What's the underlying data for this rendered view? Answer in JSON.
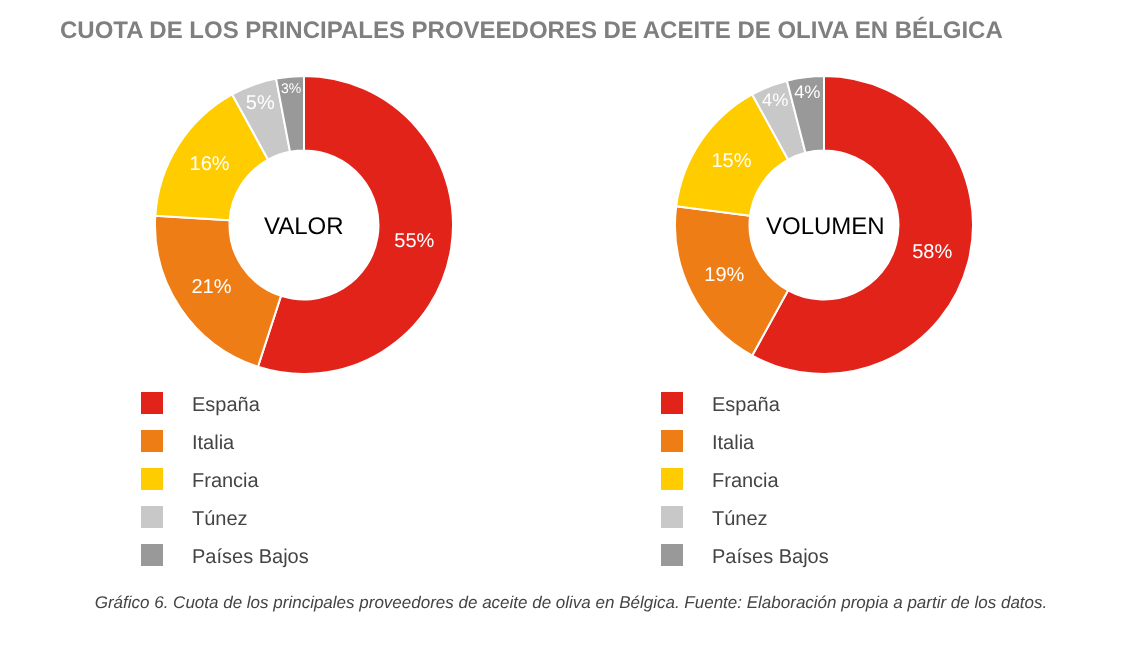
{
  "chart_data": [
    {
      "type": "donut",
      "title": "CUOTA DE LOS PRINCIPALES PROVEEDORES DE ACEITE DE OLIVA EN BÉLGICA",
      "categories": [
        "España",
        "Italia",
        "Francia",
        "Túnez",
        "Países Bajos"
      ],
      "values": [
        55,
        21,
        16,
        5,
        3
      ],
      "value_labels": [
        "55%",
        "21%",
        "16%",
        "5%",
        "3%"
      ],
      "colors": [
        "#e2231a",
        "#ef7d15",
        "#ffcc00",
        "#c8c8c8",
        "#999999"
      ],
      "legend": "bottom",
      "annotations": [
        "VALOR",
        "Gráfico 6. Cuota de los principales proveedores de aceite de oliva en Bélgica. Fuente: Elaboración propia a partir de los datos."
      ]
    },
    {
      "type": "donut",
      "categories": [
        "España",
        "Italia",
        "Francia",
        "Túnez",
        "Países Bajos"
      ],
      "values": [
        58,
        19,
        15,
        4,
        4
      ],
      "value_labels": [
        "58%",
        "19%",
        "15%",
        "4%",
        "4%"
      ],
      "colors": [
        "#e2231a",
        "#ef7d15",
        "#ffcc00",
        "#c8c8c8",
        "#999999"
      ],
      "legend": "bottom",
      "annotations": [
        "VOLUMEN"
      ]
    }
  ]
}
